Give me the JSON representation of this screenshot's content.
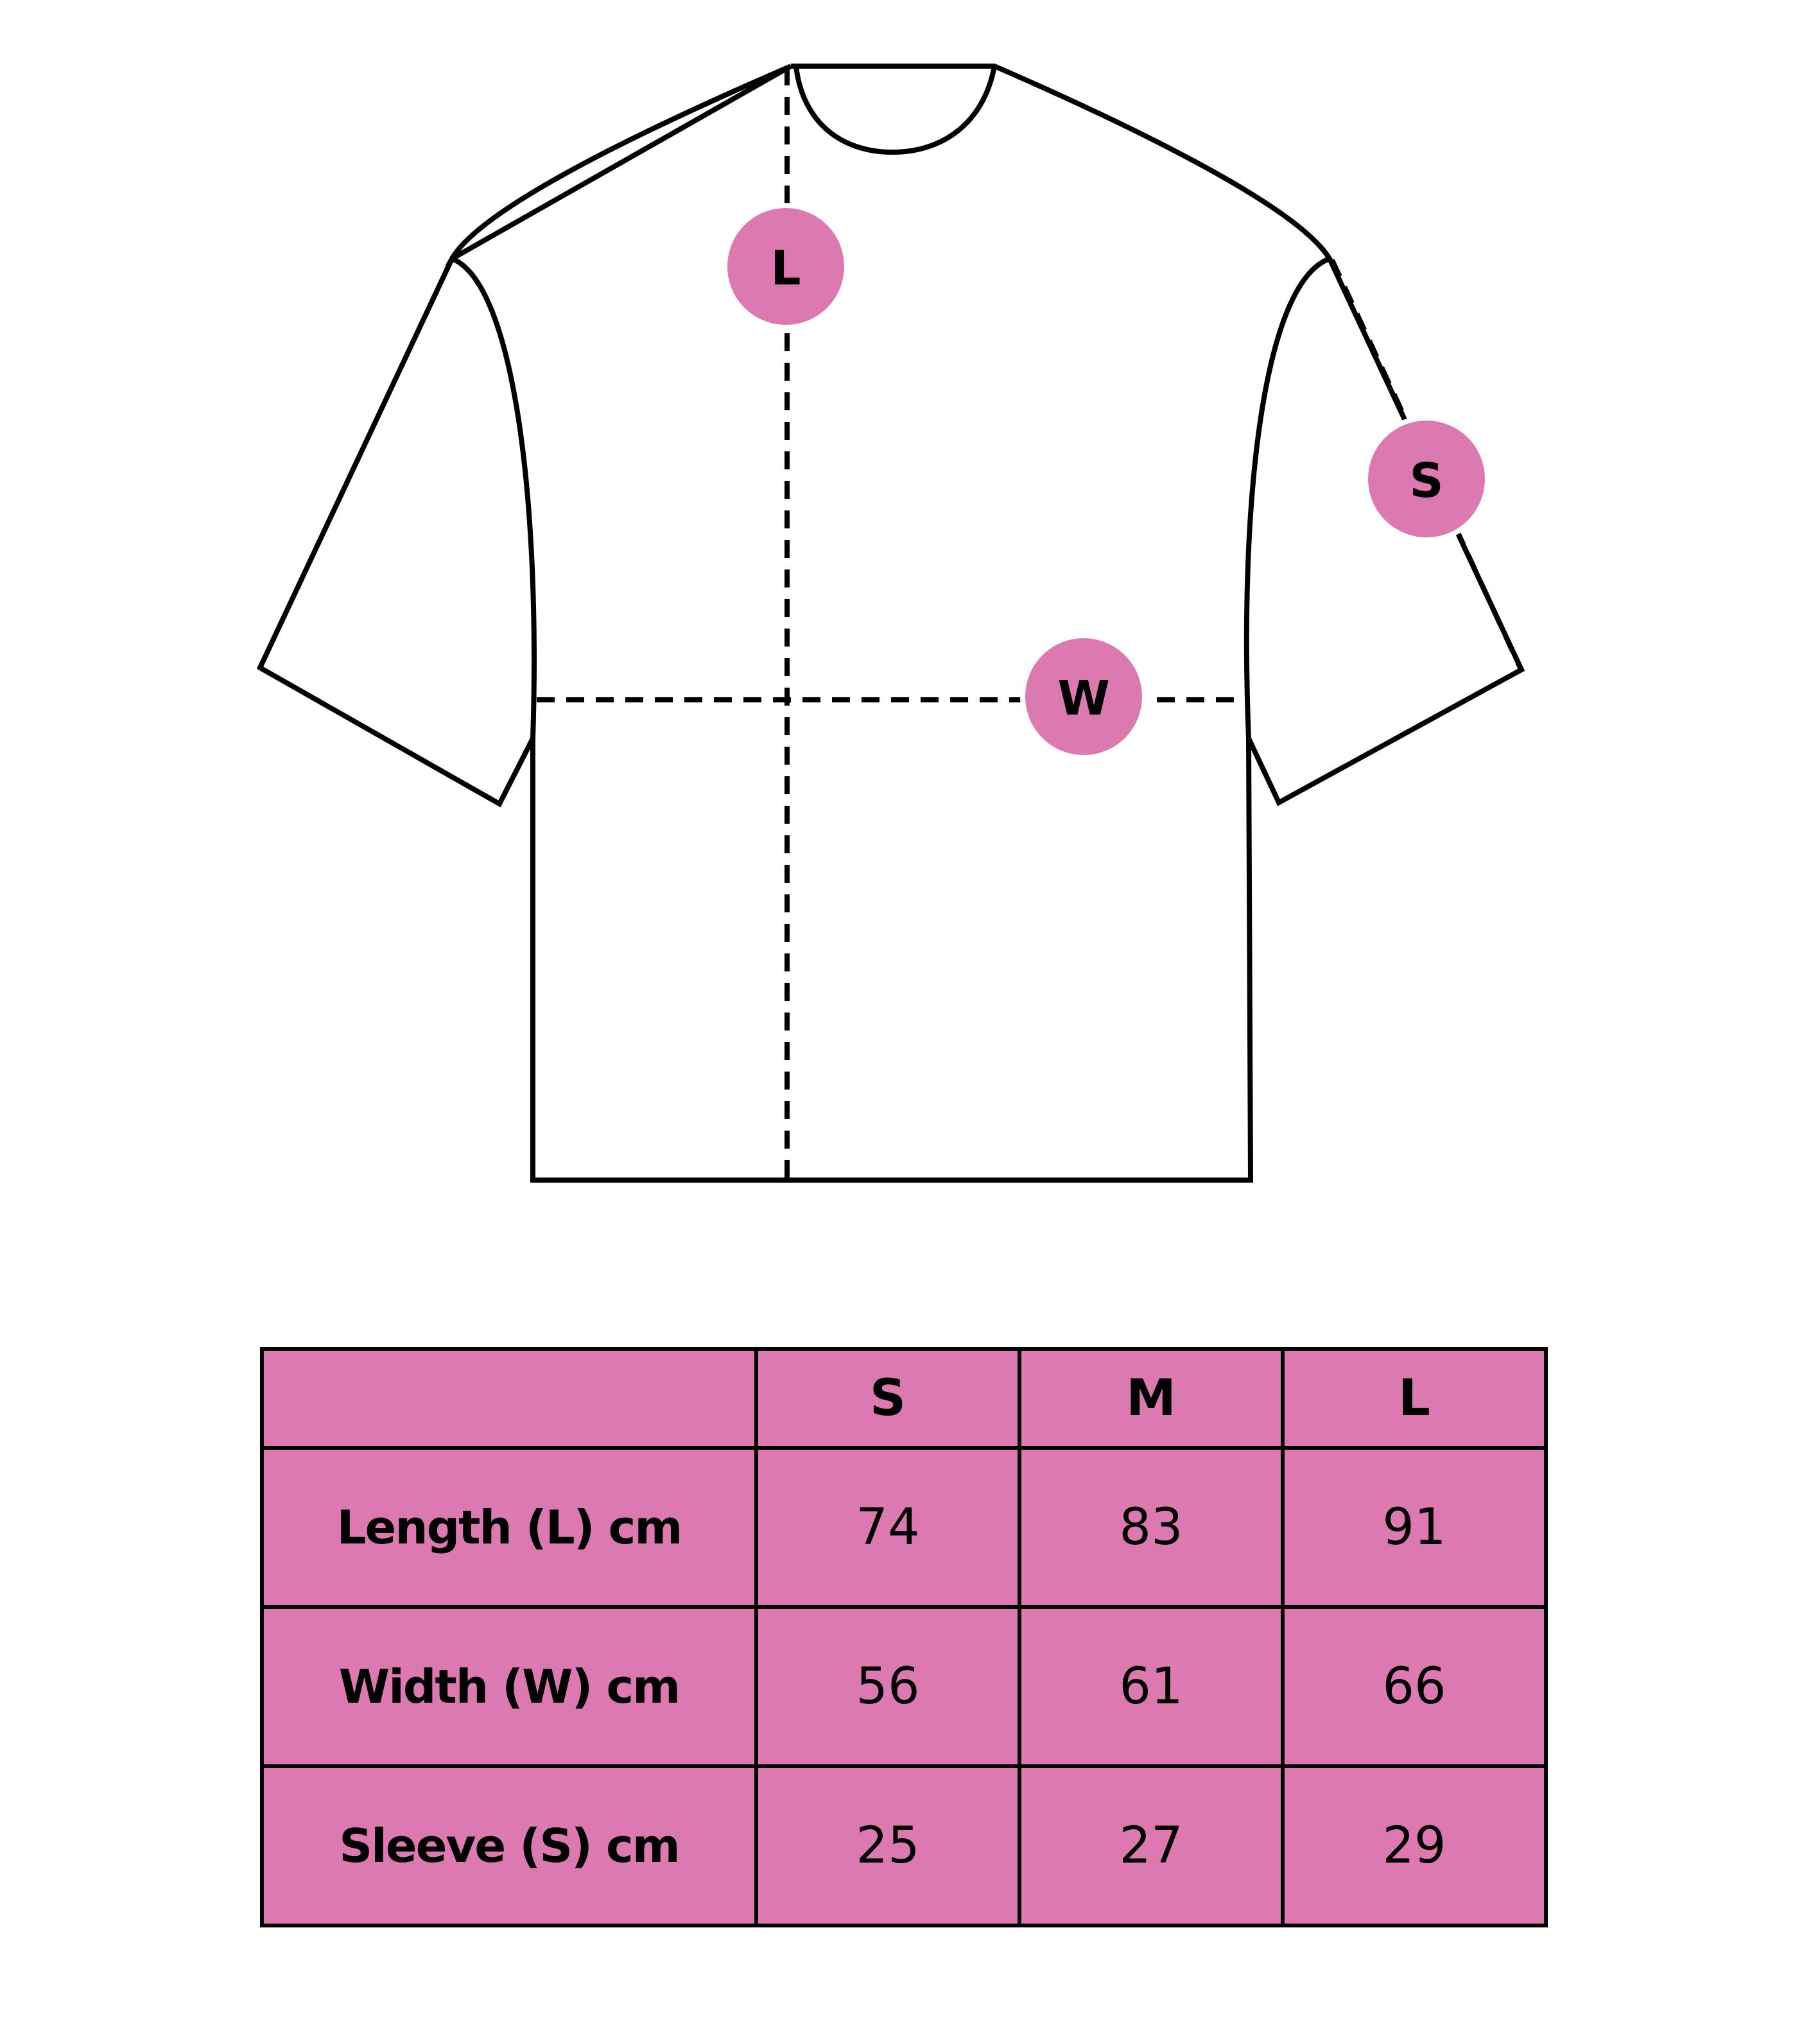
{
  "colors": {
    "accent": "#dc79b1",
    "outline": "#000000",
    "background": "#ffffff"
  },
  "diagram": {
    "markers": {
      "length": "L",
      "width": "W",
      "sleeve": "S"
    }
  },
  "table": {
    "headers": [
      "",
      "S",
      "M",
      "L"
    ],
    "rows": [
      {
        "label": "Length (L) cm",
        "values": [
          "74",
          "83",
          "91"
        ]
      },
      {
        "label": "Width (W) cm",
        "values": [
          "56",
          "61",
          "66"
        ]
      },
      {
        "label": "Sleeve (S) cm",
        "values": [
          "25",
          "27",
          "29"
        ]
      }
    ]
  }
}
